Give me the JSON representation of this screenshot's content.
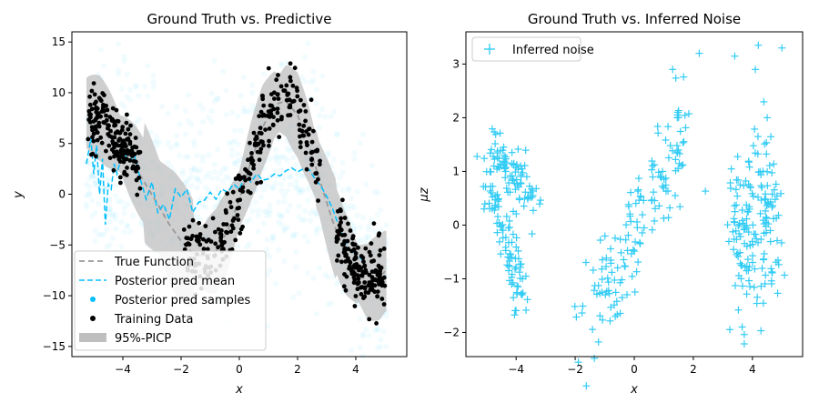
{
  "chart_data": [
    {
      "type": "scatter",
      "title": "Ground Truth vs. Predictive",
      "xlabel": "x",
      "ylabel": "y",
      "xlim": [
        -5.75,
        5.75
      ],
      "ylim": [
        -16,
        16
      ],
      "xticks": [
        -4,
        -2,
        0,
        2,
        4
      ],
      "yticks": [
        -15,
        -10,
        -5,
        0,
        5,
        10,
        15
      ],
      "legend_position": "lower-left",
      "legend": [
        "True Function",
        "Posterior pred mean",
        "Posterior pred samples",
        "Training Data",
        "95%-PICP"
      ],
      "colors": {
        "true_function": "#999999",
        "pred_mean": "#00bfff",
        "pred_samples": "#00bfff",
        "training": "#000000",
        "picp": "#bfbfbf"
      },
      "series": [
        {
          "name": "True Function",
          "x": [
            -5.2,
            -4.8,
            -4.4,
            -4.0,
            -3.6,
            -3.2,
            -2.8,
            -2.4,
            -2.0,
            -1.6,
            -1.2,
            -0.8,
            -0.4,
            0.0,
            0.4,
            0.8,
            1.2,
            1.6,
            2.0,
            2.4,
            2.8,
            3.2,
            3.6,
            4.0,
            4.4,
            4.8,
            5.0
          ],
          "y": [
            8.0,
            7.5,
            6.2,
            4.6,
            2.8,
            0.9,
            -1.0,
            -3.0,
            -4.6,
            -5.8,
            -6.2,
            -5.6,
            -3.6,
            -0.5,
            3.2,
            6.6,
            8.8,
            9.2,
            7.8,
            4.8,
            1.0,
            -2.6,
            -5.6,
            -7.6,
            -8.6,
            -8.2,
            -7.6
          ]
        },
        {
          "name": "Posterior pred mean",
          "x": [
            -5.25,
            -5.1,
            -5.0,
            -4.9,
            -4.8,
            -4.7,
            -4.6,
            -4.5,
            -4.4,
            -4.3,
            -4.2,
            -4.0,
            -3.8,
            -3.6,
            -3.4,
            -3.2,
            -3.0,
            -2.8,
            -2.6,
            -2.4,
            -2.2,
            -2.0,
            -1.8,
            -1.6,
            -1.4,
            -1.2,
            -1.0,
            -0.8,
            -0.6,
            -0.4,
            -0.2,
            0.0,
            0.2,
            0.4,
            0.6,
            0.8,
            1.0,
            1.2,
            1.4,
            1.6,
            1.8,
            2.0,
            2.2,
            2.4,
            2.6,
            2.8,
            3.0,
            3.2,
            3.4,
            3.6,
            3.8,
            4.0,
            4.2,
            4.4,
            4.6,
            4.8,
            5.0
          ],
          "y": [
            3.0,
            5.5,
            2.0,
            4.8,
            0.0,
            3.5,
            -3.0,
            1.0,
            0.5,
            3.0,
            2.0,
            4.3,
            3.2,
            3.8,
            1.5,
            -0.5,
            1.2,
            -1.8,
            -1.0,
            -2.5,
            0.5,
            -0.3,
            0.5,
            -1.8,
            -0.8,
            -0.6,
            0.2,
            -0.5,
            0.5,
            0.2,
            1.0,
            0.5,
            1.8,
            1.2,
            2.0,
            1.4,
            1.5,
            2.0,
            1.8,
            2.3,
            2.6,
            2.2,
            2.5,
            2.4,
            1.5,
            0.8,
            -0.2,
            -1.4,
            -3.0,
            -4.5,
            -5.6,
            -5.8,
            -6.4,
            -7.8,
            -8.4,
            -8.6,
            -8.0
          ]
        },
        {
          "name": "Inferred noise",
          "note_x": [
            -5.2,
            -4.9,
            -4.6,
            -4.3,
            -4.0,
            -3.7,
            -3.4,
            -3.1,
            -1.8,
            -1.4,
            -1.0,
            -0.6,
            -0.2,
            0.2,
            0.6,
            1.0,
            1.4,
            1.8,
            3.3,
            3.6,
            3.9,
            4.2,
            4.5,
            4.8
          ],
          "note_y": [
            1.2,
            1.4,
            1.5,
            1.3,
            1.0,
            0.6,
            0.3,
            -0.3,
            -0.7,
            -1.2,
            -1.4,
            -1.0,
            -0.6,
            0.0,
            0.8,
            1.7,
            2.4,
            1.2,
            0.9,
            0.5,
            0.0,
            -0.4,
            0.3,
            0.9
          ]
        }
      ]
    },
    {
      "type": "scatter",
      "title": "Ground Truth vs. Inferred Noise",
      "xlabel": "x",
      "ylabel": "μz",
      "xlim": [
        -5.7,
        5.7
      ],
      "ylim": [
        -2.45,
        3.6
      ],
      "xticks": [
        -4,
        -2,
        0,
        2,
        4
      ],
      "yticks": [
        -2,
        -1,
        0,
        1,
        2,
        3
      ],
      "legend_position": "top-left",
      "legend": [
        "Inferred noise"
      ],
      "colors": {
        "noise": "#33ccf5"
      }
    }
  ]
}
